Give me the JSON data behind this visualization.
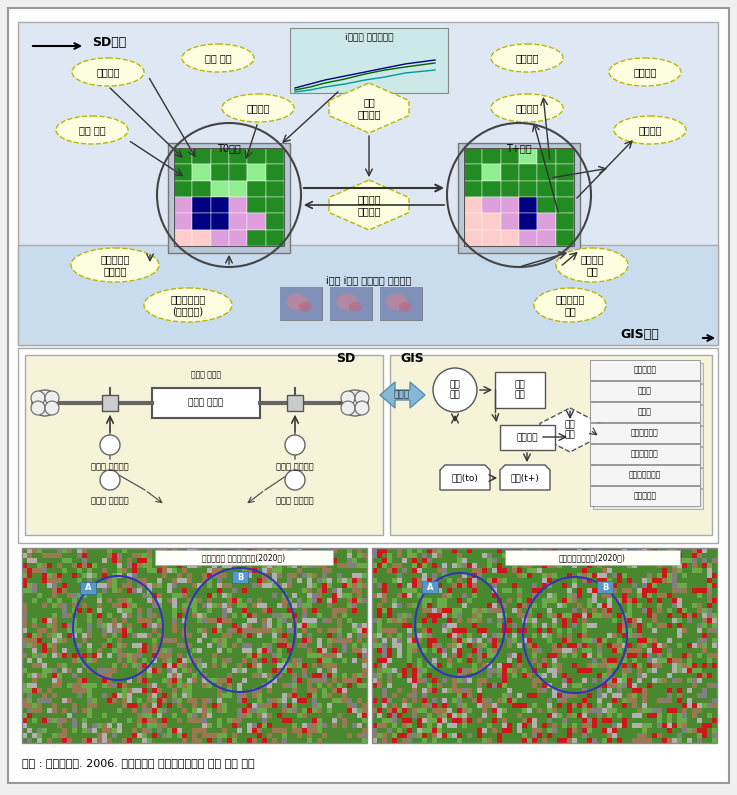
{
  "caption": "출처 : 국토연구원. 2006. 시공간통합 국토시뮬레이션 모형 개발 연구",
  "sd_label": "SD영역",
  "gis_label": "GIS영역",
  "sd_label2": "SD",
  "gis_label2": "GIS",
  "top_chart_label": "i지역의 부문별변화",
  "node_center_left": "T0시점",
  "node_center_right": "T+시점",
  "hex_center": "국토\n개발사업",
  "hex_bottom": "토지이용\n규제변경",
  "spatiotemporal_label": "i지역 i셀의 시공간적 용도변화",
  "map_title_left": "자연발생적 도지이용변화(2020년)",
  "map_title_right": "택지공급정책시행(2020년)",
  "gis_data_labels": [
    "시가화구역",
    "경시도",
    "도로망",
    "용도지역지구",
    "시군행정분포",
    "토지환경성등급",
    "도지피복도"
  ],
  "bg_outer": "#f0f0f0",
  "bg_inner_white": "#ffffff",
  "bg_top_blue": "#dde8f4",
  "bg_gis_band": "#c8dced",
  "bg_sd_box": "#f5f3d8",
  "bg_gis_box": "#f5f3d8",
  "ellipse_fc": "#fefee0",
  "ellipse_ec": "#b8b800",
  "hex_fc": "#fefee0",
  "hex_ec": "#b8b800"
}
